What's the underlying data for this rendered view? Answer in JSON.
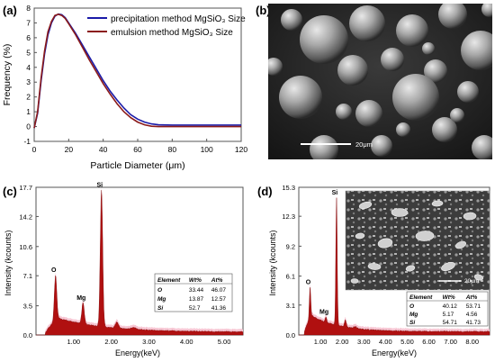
{
  "panels": {
    "a": {
      "label": "(a)",
      "chart_data": {
        "type": "line",
        "xlabel": "Particle Diameter (μm)",
        "ylabel": "Frequency (%)",
        "xlim": [
          0,
          120
        ],
        "ylim": [
          -1,
          8
        ],
        "xticks": [
          "0",
          "20",
          "40",
          "60",
          "80",
          "100",
          "120"
        ],
        "yticks": [
          "-1",
          "0",
          "1",
          "2",
          "3",
          "4",
          "5",
          "6",
          "7",
          "8"
        ],
        "legend_position": "top-right",
        "series": [
          {
            "name": "precipitation method MgSiO₃ Size",
            "color": "#1a1aa8",
            "x": [
              0,
              2,
              4,
              6,
              8,
              10,
              12,
              14,
              16,
              18,
              20,
              24,
              28,
              32,
              36,
              40,
              44,
              48,
              52,
              56,
              60,
              64,
              68,
              72,
              80,
              90,
              100,
              110,
              120
            ],
            "y": [
              -0.1,
              0.9,
              3.1,
              4.9,
              6.2,
              7.0,
              7.45,
              7.6,
              7.55,
              7.35,
              7.0,
              6.3,
              5.5,
              4.7,
              3.9,
              3.1,
              2.4,
              1.8,
              1.25,
              0.8,
              0.5,
              0.3,
              0.18,
              0.12,
              0.1,
              0.1,
              0.1,
              0.1,
              0.1
            ]
          },
          {
            "name": "emulsion method MgSiO₃ Size",
            "color": "#8b1a1a",
            "x": [
              0,
              2,
              4,
              6,
              8,
              10,
              12,
              14,
              16,
              18,
              20,
              24,
              28,
              32,
              36,
              40,
              44,
              48,
              52,
              56,
              60,
              64,
              68,
              72,
              80,
              90,
              100,
              110,
              120
            ],
            "y": [
              -0.1,
              1.0,
              3.3,
              5.1,
              6.4,
              7.1,
              7.5,
              7.58,
              7.5,
              7.3,
              6.95,
              6.2,
              5.35,
              4.5,
              3.7,
              2.9,
              2.2,
              1.55,
              1.0,
              0.6,
              0.3,
              0.12,
              0.02,
              0.0,
              0.0,
              0.0,
              0.0,
              0.0,
              0.0
            ]
          }
        ]
      }
    },
    "b": {
      "label": "(b)",
      "scalebar": "20μm"
    },
    "c": {
      "label": "(c)",
      "chart_data": {
        "type": "area",
        "xlabel": "Energy(keV)",
        "ylabel": "Intensity (kcounts)",
        "xlim": [
          0,
          5.5
        ],
        "ylim": [
          0,
          17.7
        ],
        "xticks": [
          "1.00",
          "2.00",
          "3.00",
          "4.00",
          "5.00"
        ],
        "yticks": [
          "0.0",
          "3.5",
          "7.1",
          "10.6",
          "14.2",
          "17.7"
        ],
        "color": "#b01010",
        "peaks": [
          {
            "element": "O",
            "energy": 0.52,
            "value": 7.1
          },
          {
            "element": "Mg",
            "energy": 1.25,
            "value": 3.8
          },
          {
            "element": "Si",
            "energy": 1.74,
            "value": 17.3
          }
        ],
        "table": {
          "headers": [
            "Element",
            "Wt%",
            "At%"
          ],
          "rows": [
            [
              "O",
              "33.44",
              "46.07"
            ],
            [
              "Mg",
              "13.87",
              "12.57"
            ],
            [
              "Si",
              "52.7",
              "41.36"
            ]
          ]
        }
      }
    },
    "d": {
      "label": "(d)",
      "scalebar": "20μm",
      "chart_data": {
        "type": "area",
        "xlabel": "Energy(keV)",
        "ylabel": "Intensity (kcounts)",
        "xlim": [
          0,
          8.8
        ],
        "ylim": [
          0,
          15.3
        ],
        "xticks": [
          "1.00",
          "2.00",
          "3.00",
          "4.00",
          "5.00",
          "6.00",
          "7.00",
          "8.00"
        ],
        "yticks": [
          "0.0",
          "3.1",
          "6.1",
          "9.2",
          "12.3",
          "15.3"
        ],
        "color": "#b01010",
        "peaks": [
          {
            "element": "O",
            "energy": 0.52,
            "value": 4.9
          },
          {
            "element": "Mg",
            "energy": 1.25,
            "value": 1.8
          },
          {
            "element": "Si",
            "energy": 1.74,
            "value": 14.2
          }
        ],
        "table": {
          "headers": [
            "Element",
            "Wt%",
            "At%"
          ],
          "rows": [
            [
              "O",
              "40.12",
              "53.71"
            ],
            [
              "Mg",
              "5.17",
              "4.56"
            ],
            [
              "Si",
              "54.71",
              "41.73"
            ]
          ]
        }
      }
    }
  }
}
